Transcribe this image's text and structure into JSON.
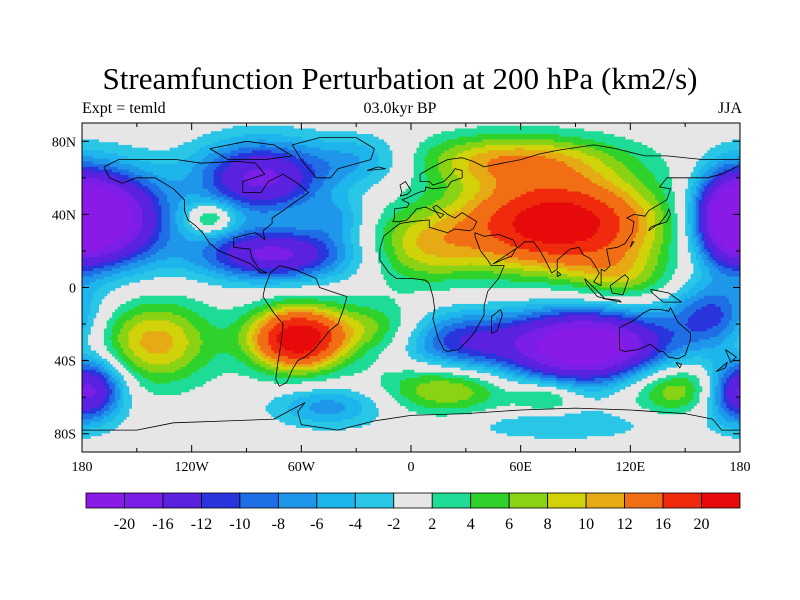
{
  "title": "Streamfunction Perturbation at 200 hPa (km2/s)",
  "subtitle_left": "Expt = temld",
  "subtitle_center": "03.0kyr BP",
  "subtitle_right": "JJA",
  "map": {
    "lon_range": [
      -180,
      180
    ],
    "lat_range": [
      -90,
      90
    ],
    "lon_ticks": [
      {
        "value": -180,
        "label": "180"
      },
      {
        "value": -120,
        "label": "120W"
      },
      {
        "value": -60,
        "label": "60W"
      },
      {
        "value": 0,
        "label": "0"
      },
      {
        "value": 60,
        "label": "60E"
      },
      {
        "value": 120,
        "label": "120E"
      },
      {
        "value": 180,
        "label": "180"
      }
    ],
    "lat_ticks": [
      {
        "value": 80,
        "label": "80N"
      },
      {
        "value": 40,
        "label": "40N"
      },
      {
        "value": 0,
        "label": "0"
      },
      {
        "value": -40,
        "label": "40S"
      },
      {
        "value": -80,
        "label": "80S"
      }
    ],
    "background_color": "#e6e6e6",
    "coastline_color": "#000000"
  },
  "colorbar": {
    "levels": [
      "-20",
      "-16",
      "-12",
      "-10",
      "-8",
      "-6",
      "-4",
      "-2",
      "2",
      "4",
      "6",
      "8",
      "10",
      "12",
      "16",
      "20"
    ],
    "colors": [
      "#8a1ae6",
      "#7a1ee8",
      "#5a22e0",
      "#2a34dc",
      "#1e6ee6",
      "#1e96ea",
      "#1eb4ec",
      "#2ac6e6",
      "#e6e6e6",
      "#1edc96",
      "#2ed22a",
      "#8ad214",
      "#d2d20a",
      "#e6aa14",
      "#f26e14",
      "#f02a0c",
      "#e60a0a"
    ]
  },
  "field_blobs": [
    {
      "lon": -165,
      "lat": 38,
      "amp": -22,
      "slon": 22,
      "slat": 18
    },
    {
      "lon": 175,
      "lat": 38,
      "amp": -18,
      "slon": 14,
      "slat": 18
    },
    {
      "lon": -82,
      "lat": 60,
      "amp": -17,
      "slon": 25,
      "slat": 14
    },
    {
      "lon": -75,
      "lat": 18,
      "amp": -17,
      "slon": 30,
      "slat": 10
    },
    {
      "lon": -25,
      "lat": 70,
      "amp": -6,
      "slon": 20,
      "slat": 10
    },
    {
      "lon": -110,
      "lat": 38,
      "amp": 8,
      "slon": 9,
      "slat": 6
    },
    {
      "lon": -40,
      "lat": 38,
      "amp": -5,
      "slon": 12,
      "slat": 8
    },
    {
      "lon": 80,
      "lat": 35,
      "amp": 24,
      "slon": 38,
      "slat": 18
    },
    {
      "lon": 55,
      "lat": 70,
      "amp": 10,
      "slon": 40,
      "slat": 10
    },
    {
      "lon": 5,
      "lat": 22,
      "amp": 8,
      "slon": 22,
      "slat": 14
    },
    {
      "lon": 115,
      "lat": 5,
      "amp": 6,
      "slon": 18,
      "slat": 10
    },
    {
      "lon": 95,
      "lat": -32,
      "amp": -26,
      "slon": 32,
      "slat": 14
    },
    {
      "lon": 25,
      "lat": -30,
      "amp": -10,
      "slon": 22,
      "slat": 12
    },
    {
      "lon": 165,
      "lat": -15,
      "amp": -10,
      "slon": 16,
      "slat": 12
    },
    {
      "lon": -62,
      "lat": -28,
      "amp": 24,
      "slon": 18,
      "slat": 12
    },
    {
      "lon": -140,
      "lat": -30,
      "amp": 11,
      "slon": 22,
      "slat": 16
    },
    {
      "lon": -20,
      "lat": -22,
      "amp": 6,
      "slon": 18,
      "slat": 10
    },
    {
      "lon": -172,
      "lat": -55,
      "amp": -12,
      "slon": 12,
      "slat": 12
    },
    {
      "lon": 175,
      "lat": -58,
      "amp": -10,
      "slon": 12,
      "slat": 12
    },
    {
      "lon": -45,
      "lat": -65,
      "amp": -7,
      "slon": 22,
      "slat": 8
    },
    {
      "lon": 20,
      "lat": -55,
      "amp": 9,
      "slon": 25,
      "slat": 10
    },
    {
      "lon": 75,
      "lat": -60,
      "amp": 6,
      "slon": 12,
      "slat": 6
    },
    {
      "lon": 145,
      "lat": -55,
      "amp": 9,
      "slon": 20,
      "slat": 10
    },
    {
      "lon": 80,
      "lat": -75,
      "amp": -4,
      "slon": 40,
      "slat": 6
    }
  ],
  "coastlines": [
    [
      [
        -168,
        66
      ],
      [
        -160,
        70
      ],
      [
        -140,
        70
      ],
      [
        -128,
        70
      ],
      [
        -115,
        68
      ],
      [
        -95,
        69
      ],
      [
        -85,
        68
      ],
      [
        -80,
        62
      ],
      [
        -92,
        58
      ],
      [
        -92,
        52
      ],
      [
        -82,
        52
      ],
      [
        -78,
        58
      ],
      [
        -70,
        62
      ],
      [
        -62,
        57
      ],
      [
        -56,
        52
      ],
      [
        -66,
        45
      ],
      [
        -70,
        42
      ],
      [
        -76,
        38
      ],
      [
        -76,
        35
      ],
      [
        -81,
        31
      ],
      [
        -80,
        26
      ],
      [
        -82,
        28
      ],
      [
        -85,
        30
      ],
      [
        -90,
        29
      ],
      [
        -97,
        27
      ],
      [
        -97,
        22
      ],
      [
        -88,
        21
      ],
      [
        -87,
        16
      ],
      [
        -83,
        10
      ],
      [
        -79,
        8
      ],
      [
        -82,
        8
      ],
      [
        -88,
        13
      ],
      [
        -95,
        16
      ],
      [
        -105,
        20
      ],
      [
        -110,
        24
      ],
      [
        -114,
        30
      ],
      [
        -118,
        34
      ],
      [
        -122,
        37
      ],
      [
        -124,
        42
      ],
      [
        -124,
        48
      ],
      [
        -130,
        54
      ],
      [
        -140,
        60
      ],
      [
        -150,
        60
      ],
      [
        -158,
        57
      ],
      [
        -165,
        60
      ],
      [
        -168,
        66
      ]
    ],
    [
      [
        -77,
        8
      ],
      [
        -72,
        12
      ],
      [
        -64,
        10
      ],
      [
        -52,
        5
      ],
      [
        -50,
        0
      ],
      [
        -44,
        -2
      ],
      [
        -35,
        -5
      ],
      [
        -37,
        -12
      ],
      [
        -40,
        -20
      ],
      [
        -45,
        -24
      ],
      [
        -48,
        -28
      ],
      [
        -53,
        -34
      ],
      [
        -58,
        -38
      ],
      [
        -62,
        -40
      ],
      [
        -65,
        -45
      ],
      [
        -68,
        -52
      ],
      [
        -72,
        -54
      ],
      [
        -74,
        -50
      ],
      [
        -73,
        -42
      ],
      [
        -71,
        -30
      ],
      [
        -70,
        -20
      ],
      [
        -75,
        -14
      ],
      [
        -81,
        -5
      ],
      [
        -80,
        0
      ],
      [
        -77,
        8
      ]
    ],
    [
      [
        -52,
        60
      ],
      [
        -44,
        60
      ],
      [
        -40,
        65
      ],
      [
        -22,
        70
      ],
      [
        -20,
        76
      ],
      [
        -30,
        82
      ],
      [
        -50,
        82
      ],
      [
        -65,
        78
      ],
      [
        -60,
        70
      ],
      [
        -52,
        60
      ]
    ],
    [
      [
        -100,
        70
      ],
      [
        -80,
        70
      ],
      [
        -65,
        72
      ],
      [
        -75,
        78
      ],
      [
        -90,
        80
      ],
      [
        -110,
        76
      ],
      [
        -100,
        70
      ]
    ],
    [
      [
        -24,
        64
      ],
      [
        -14,
        65
      ],
      [
        -18,
        66
      ],
      [
        -24,
        64
      ]
    ],
    [
      [
        -6,
        50
      ],
      [
        -2,
        51
      ],
      [
        0,
        53
      ],
      [
        -3,
        58
      ],
      [
        -6,
        56
      ],
      [
        -5,
        52
      ],
      [
        -6,
        50
      ]
    ],
    [
      [
        -10,
        36
      ],
      [
        -6,
        36
      ],
      [
        -2,
        37
      ],
      [
        3,
        43
      ],
      [
        8,
        44
      ],
      [
        12,
        42
      ],
      [
        18,
        40
      ],
      [
        16,
        38
      ],
      [
        12,
        44
      ],
      [
        14,
        45
      ],
      [
        20,
        40
      ],
      [
        24,
        38
      ],
      [
        28,
        41
      ],
      [
        36,
        36
      ],
      [
        34,
        32
      ],
      [
        32,
        31
      ],
      [
        24,
        32
      ],
      [
        20,
        30
      ],
      [
        10,
        33
      ],
      [
        10,
        37
      ],
      [
        0,
        36
      ],
      [
        -6,
        35
      ],
      [
        -10,
        32
      ],
      [
        -15,
        28
      ],
      [
        -17,
        21
      ],
      [
        -17,
        15
      ],
      [
        -12,
        8
      ],
      [
        -8,
        5
      ],
      [
        0,
        5
      ],
      [
        8,
        4
      ],
      [
        10,
        2
      ],
      [
        12,
        -5
      ],
      [
        13,
        -12
      ],
      [
        12,
        -17
      ],
      [
        15,
        -28
      ],
      [
        18,
        -34
      ],
      [
        20,
        -35
      ],
      [
        26,
        -34
      ],
      [
        32,
        -28
      ],
      [
        35,
        -24
      ],
      [
        40,
        -15
      ],
      [
        40,
        -10
      ],
      [
        42,
        -2
      ],
      [
        48,
        5
      ],
      [
        51,
        12
      ],
      [
        44,
        12
      ],
      [
        42,
        15
      ],
      [
        38,
        20
      ],
      [
        35,
        28
      ],
      [
        35,
        30
      ],
      [
        40,
        28
      ],
      [
        48,
        29
      ],
      [
        56,
        26
      ],
      [
        58,
        22
      ],
      [
        55,
        17
      ],
      [
        52,
        16
      ],
      [
        45,
        13
      ],
      [
        60,
        23
      ],
      [
        62,
        25
      ],
      [
        67,
        25
      ],
      [
        70,
        21
      ],
      [
        73,
        16
      ],
      [
        77,
        8
      ],
      [
        80,
        10
      ],
      [
        80,
        15
      ],
      [
        87,
        21
      ],
      [
        92,
        22
      ],
      [
        94,
        18
      ],
      [
        98,
        16
      ],
      [
        100,
        13
      ],
      [
        103,
        8
      ],
      [
        100,
        3
      ],
      [
        104,
        1
      ],
      [
        104,
        10
      ],
      [
        106,
        9
      ],
      [
        109,
        12
      ],
      [
        108,
        16
      ],
      [
        107,
        21
      ],
      [
        113,
        22
      ],
      [
        117,
        24
      ],
      [
        121,
        30
      ],
      [
        122,
        36
      ],
      [
        118,
        38
      ],
      [
        122,
        40
      ],
      [
        128,
        39
      ],
      [
        130,
        42
      ],
      [
        140,
        48
      ],
      [
        142,
        54
      ],
      [
        136,
        55
      ],
      [
        140,
        60
      ],
      [
        155,
        60
      ],
      [
        162,
        60
      ],
      [
        170,
        62
      ],
      [
        180,
        67
      ],
      [
        180,
        70
      ],
      [
        160,
        70
      ],
      [
        140,
        72
      ],
      [
        128,
        72
      ],
      [
        112,
        76
      ],
      [
        100,
        78
      ],
      [
        80,
        75
      ],
      [
        70,
        73
      ],
      [
        60,
        70
      ],
      [
        50,
        68
      ],
      [
        40,
        66
      ],
      [
        34,
        69
      ],
      [
        28,
        71
      ],
      [
        20,
        70
      ],
      [
        12,
        66
      ],
      [
        5,
        62
      ],
      [
        5,
        58
      ],
      [
        10,
        58
      ],
      [
        12,
        56
      ],
      [
        18,
        58
      ],
      [
        22,
        62
      ],
      [
        24,
        65
      ],
      [
        28,
        64
      ],
      [
        28,
        60
      ],
      [
        22,
        58
      ],
      [
        20,
        55
      ],
      [
        12,
        54
      ],
      [
        8,
        55
      ],
      [
        8,
        53
      ],
      [
        4,
        52
      ],
      [
        2,
        51
      ],
      [
        -2,
        49
      ],
      [
        -5,
        48
      ],
      [
        -1,
        46
      ],
      [
        -2,
        44
      ],
      [
        -9,
        43
      ],
      [
        -9,
        38
      ],
      [
        -10,
        36
      ]
    ],
    [
      [
        44,
        -25
      ],
      [
        47,
        -24
      ],
      [
        50,
        -15
      ],
      [
        49,
        -12
      ],
      [
        44,
        -16
      ],
      [
        44,
        -25
      ]
    ],
    [
      [
        80,
        9
      ],
      [
        82,
        7
      ],
      [
        80,
        6
      ],
      [
        80,
        9
      ]
    ],
    [
      [
        95,
        5
      ],
      [
        102,
        -2
      ],
      [
        106,
        -6
      ],
      [
        102,
        -5
      ],
      [
        96,
        2
      ],
      [
        95,
        5
      ]
    ],
    [
      [
        105,
        -6
      ],
      [
        115,
        -8
      ],
      [
        114,
        -7
      ],
      [
        106,
        -6
      ],
      [
        105,
        -6
      ]
    ],
    [
      [
        109,
        1
      ],
      [
        117,
        7
      ],
      [
        119,
        5
      ],
      [
        116,
        -4
      ],
      [
        110,
        -3
      ],
      [
        109,
        1
      ]
    ],
    [
      [
        131,
        -1
      ],
      [
        141,
        -3
      ],
      [
        148,
        -8
      ],
      [
        145,
        -8
      ],
      [
        138,
        -8
      ],
      [
        132,
        -3
      ],
      [
        131,
        -1
      ]
    ],
    [
      [
        130,
        31
      ],
      [
        134,
        34
      ],
      [
        140,
        36
      ],
      [
        142,
        40
      ],
      [
        141,
        43
      ],
      [
        140,
        40
      ],
      [
        136,
        35
      ],
      [
        131,
        33
      ],
      [
        130,
        31
      ]
    ],
    [
      [
        120,
        22
      ],
      [
        122,
        25
      ],
      [
        121,
        25
      ],
      [
        120,
        22
      ]
    ],
    [
      [
        114,
        -22
      ],
      [
        114,
        -34
      ],
      [
        117,
        -35
      ],
      [
        124,
        -34
      ],
      [
        131,
        -31
      ],
      [
        136,
        -35
      ],
      [
        138,
        -35
      ],
      [
        141,
        -38
      ],
      [
        146,
        -39
      ],
      [
        150,
        -37
      ],
      [
        153,
        -28
      ],
      [
        153,
        -25
      ],
      [
        146,
        -19
      ],
      [
        142,
        -11
      ],
      [
        141,
        -13
      ],
      [
        136,
        -12
      ],
      [
        131,
        -12
      ],
      [
        127,
        -14
      ],
      [
        122,
        -18
      ],
      [
        114,
        -22
      ]
    ],
    [
      [
        145,
        -41
      ],
      [
        148,
        -42
      ],
      [
        147,
        -44
      ],
      [
        145,
        -41
      ]
    ],
    [
      [
        172,
        -34
      ],
      [
        178,
        -38
      ],
      [
        175,
        -41
      ],
      [
        172,
        -34
      ]
    ],
    [
      [
        167,
        -46
      ],
      [
        173,
        -41
      ],
      [
        172,
        -44
      ],
      [
        167,
        -46
      ]
    ],
    [
      [
        -180,
        -78
      ],
      [
        -150,
        -78
      ],
      [
        -130,
        -74
      ],
      [
        -100,
        -73
      ],
      [
        -75,
        -72
      ],
      [
        -60,
        -64
      ],
      [
        -58,
        -63
      ],
      [
        -62,
        -68
      ],
      [
        -60,
        -75
      ],
      [
        -40,
        -78
      ],
      [
        -20,
        -73
      ],
      [
        0,
        -70
      ],
      [
        30,
        -69
      ],
      [
        60,
        -67
      ],
      [
        90,
        -66
      ],
      [
        120,
        -67
      ],
      [
        150,
        -69
      ],
      [
        165,
        -72
      ],
      [
        170,
        -78
      ],
      [
        180,
        -78
      ]
    ]
  ]
}
